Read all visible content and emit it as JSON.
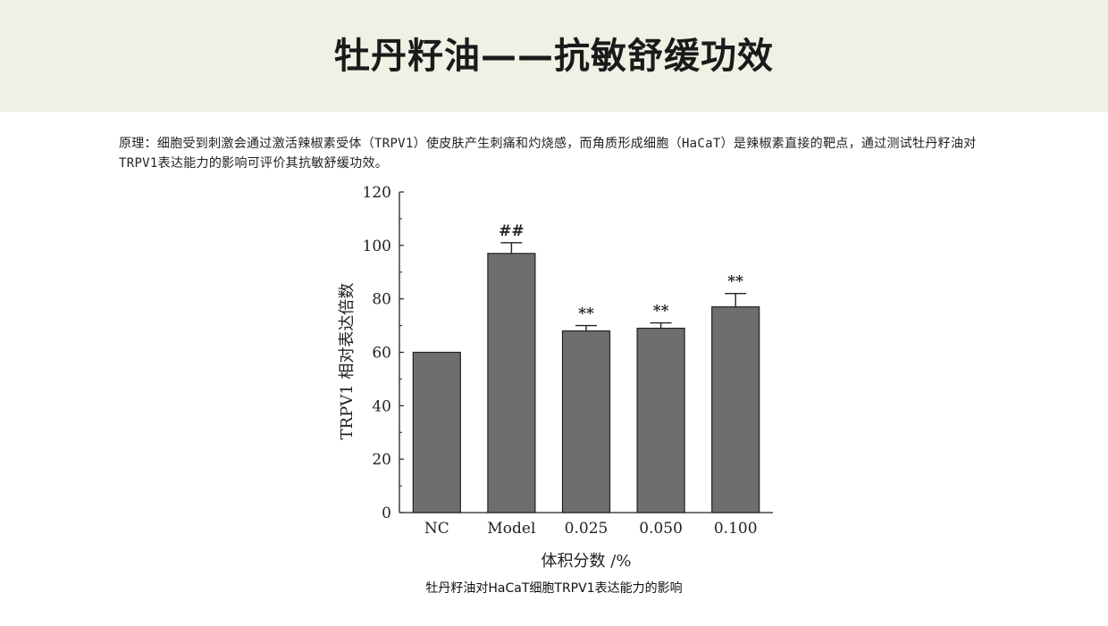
{
  "header": {
    "title": "牡丹籽油——抗敏舒缓功效"
  },
  "principle": {
    "text": "原理：细胞受到刺激会通过激活辣椒素受体（TRPV1）使皮肤产生刺痛和灼烧感，而角质形成细胞（HaCaT）是辣椒素直接的靶点，通过测试牡丹籽油对TRPV1表达能力的影响可评价其抗敏舒缓功效。"
  },
  "caption": {
    "text": "牡丹籽油对HaCaT细胞TRPV1表达能力的影响"
  },
  "colors": {
    "bar_fill": "#6e6e6e",
    "bar_stroke": "#222222",
    "header_bg": "#f0f0e4"
  },
  "chart_data": {
    "type": "bar",
    "categories": [
      "NC",
      "Model",
      "0.025",
      "0.050",
      "0.100"
    ],
    "values": [
      60,
      97,
      68,
      69,
      77
    ],
    "errors": [
      0,
      4,
      2,
      2,
      5
    ],
    "significance": [
      "",
      "##",
      "**",
      "**",
      "**"
    ],
    "title": "",
    "xlabel": "体积分数 /%",
    "ylabel": "TRPV1 相对表达倍数",
    "ylim": [
      0,
      120
    ],
    "yticks": [
      0,
      20,
      40,
      60,
      80,
      100,
      120
    ],
    "grid": false
  }
}
